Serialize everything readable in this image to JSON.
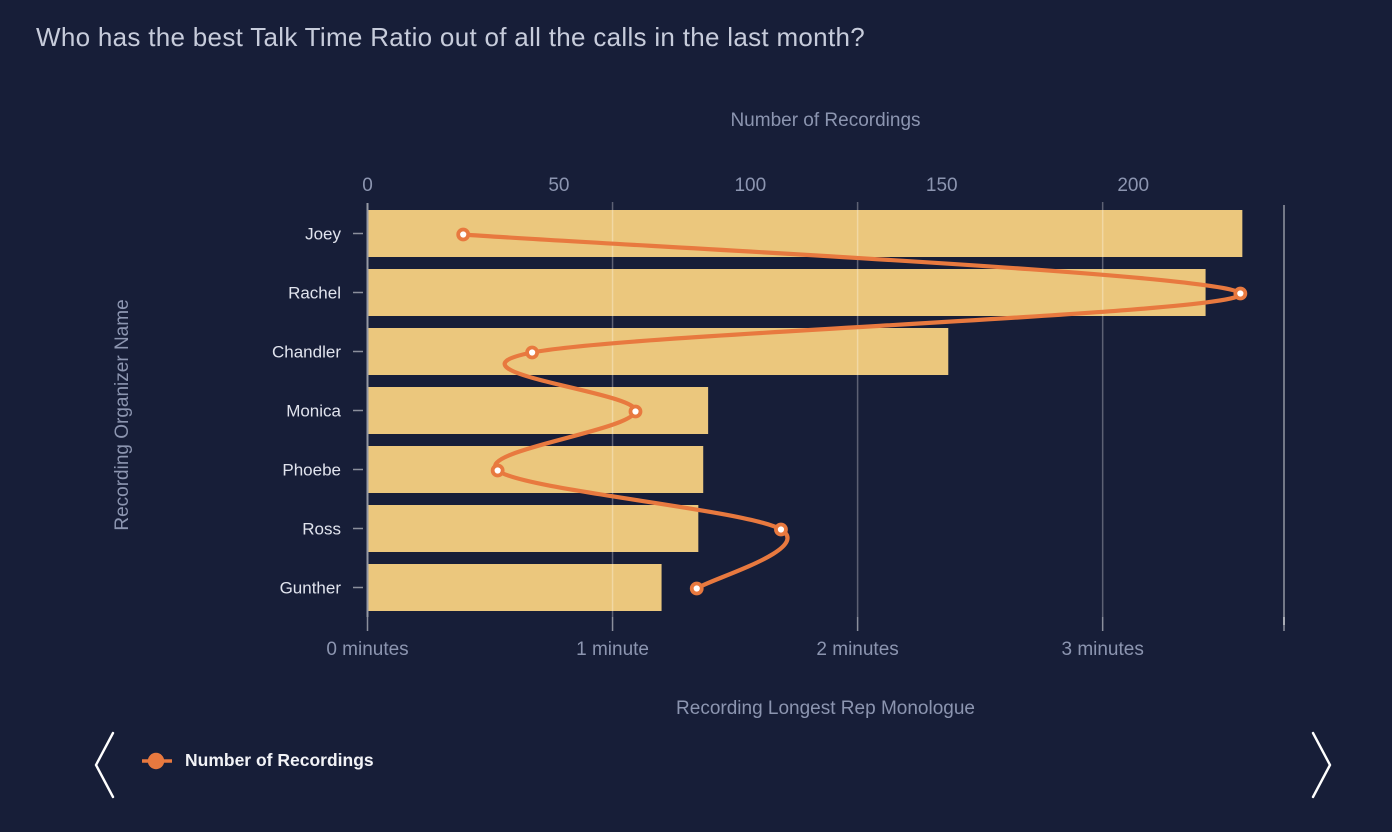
{
  "title": "Who has the best Talk Time Ratio out of all the calls in the last month?",
  "chart_data": {
    "type": "bar",
    "subtype": "horizontal-bar-with-line-overlay",
    "categories": [
      "Joey",
      "Rachel",
      "Chandler",
      "Monica",
      "Phoebe",
      "Ross",
      "Gunther"
    ],
    "series": [
      {
        "name": "Recording Longest Rep Monologue",
        "type": "bar",
        "axis": "bottom",
        "unit": "minutes",
        "values": [
          3.57,
          3.42,
          2.37,
          1.39,
          1.37,
          1.35,
          1.2
        ]
      },
      {
        "name": "Number of Recordings",
        "type": "line",
        "axis": "top",
        "values": [
          25,
          228,
          43,
          70,
          34,
          108,
          86
        ]
      }
    ],
    "top_axis": {
      "title": "Number of Recordings",
      "ticks": [
        0,
        50,
        100,
        150,
        200
      ],
      "min": 0,
      "max": 239.4
    },
    "bottom_axis": {
      "title": "Recording Longest Rep Monologue",
      "ticks": [
        {
          "value": 0,
          "label": "0 minutes"
        },
        {
          "value": 1,
          "label": "1 minute"
        },
        {
          "value": 2,
          "label": "2 minutes"
        },
        {
          "value": 3,
          "label": "3 minutes"
        }
      ],
      "min": 0,
      "max": 3.74
    },
    "left_axis": {
      "title": "Recording Organizer Name"
    },
    "grid": "vertical-on",
    "legend_position": "bottom-left",
    "colors": {
      "background": "#171E38",
      "bar": "#EBC77D",
      "line": "#E8793F",
      "dot_fill": "#FFFFFF",
      "axis_text": "#8C95B0",
      "category_text": "#E0E3ED",
      "title_text": "#C7CCDB",
      "legend_text": "#F2F3F7"
    }
  },
  "legend": {
    "items": [
      {
        "label": "Number of Recordings",
        "marker": "line-dot",
        "color": "#E8793F"
      }
    ]
  },
  "nav": {
    "prev_icon": "chevron-left",
    "next_icon": "chevron-right"
  }
}
